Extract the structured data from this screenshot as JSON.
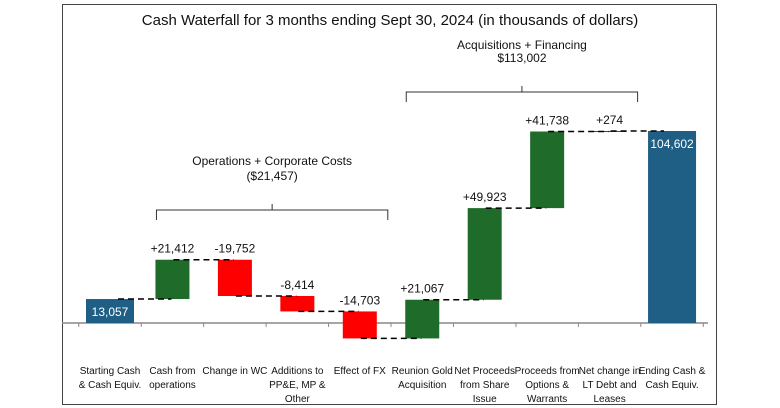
{
  "chart_data": {
    "type": "waterfall",
    "title": "Cash Waterfall for 3 months ending Sept 30, 2024 (in thousands of dollars)",
    "categories": [
      [
        "Starting Cash",
        "& Cash Equiv."
      ],
      [
        "Cash from",
        "operations"
      ],
      [
        "Change in WC"
      ],
      [
        "Additions to",
        "PP&E, MP &",
        "Other"
      ],
      [
        "Effect of FX"
      ],
      [
        "Reunion Gold",
        "Acquisition"
      ],
      [
        "Net Proceeds",
        "from Share",
        "Issue"
      ],
      [
        "Proceeds from",
        "Options &",
        "Warrants"
      ],
      [
        "Net change in",
        "LT Debt and",
        "Leases"
      ],
      [
        "Ending Cash &",
        "Cash Equiv."
      ]
    ],
    "values": [
      13057,
      21412,
      -19752,
      -8414,
      -14703,
      21067,
      49923,
      41738,
      274,
      104602
    ],
    "kinds": [
      "total",
      "delta",
      "delta",
      "delta",
      "delta",
      "delta",
      "delta",
      "delta",
      "delta",
      "total"
    ],
    "labels": [
      "13,057",
      "+21,412",
      "-19,752",
      "-8,414",
      "-14,703",
      "+21,067",
      "+49,923",
      "+41,738",
      "+274",
      "104,602"
    ],
    "ylim": [
      -20000,
      110000
    ],
    "grid": false,
    "colors": {
      "total": "#1f5f86",
      "increase": "#1e6b2a",
      "decrease": "#ff0000",
      "connector": "#000000",
      "axis": "#888888"
    },
    "annotations": [
      {
        "lines": [
          "Operations + Corporate Costs",
          "($21,457)"
        ],
        "from_category": 1,
        "to_category": 4
      },
      {
        "lines": [
          "Acquisitions + Financing",
          "$113,002"
        ],
        "from_category": 5,
        "to_category": 8
      }
    ]
  }
}
